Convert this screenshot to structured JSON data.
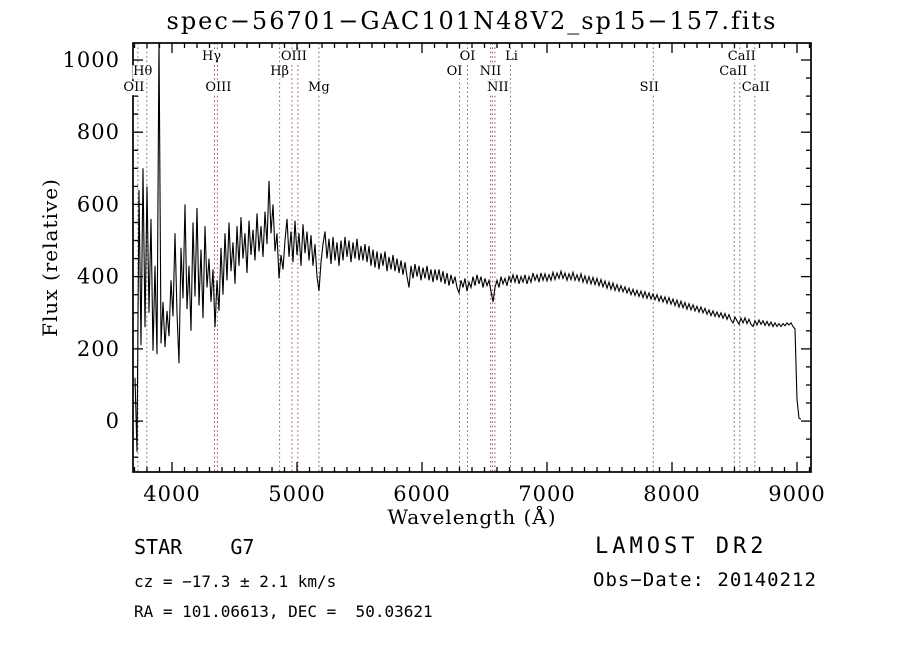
{
  "chart_data": {
    "type": "line",
    "title": "spec−56701−GAC101N48V2_sp15−157.fits",
    "xlabel": "Wavelength (Å)",
    "ylabel": "Flux (relative)",
    "xlim": [
      3688,
      9112
    ],
    "ylim": [
      -141,
      1047
    ],
    "xticks": [
      4000,
      5000,
      6000,
      7000,
      8000,
      9000
    ],
    "yticks": [
      0,
      200,
      400,
      600,
      800,
      1000
    ],
    "x_minor_step": 100,
    "y_minor_step": 50,
    "grid": false,
    "line_color": "#000000",
    "marker_color": "#9a5a5a",
    "spectral_lines": [
      {
        "wavelength": 3727,
        "label": "OII",
        "row": 3,
        "dx": -4
      },
      {
        "wavelength": 3798,
        "label": "Hθ",
        "row": 2,
        "dx": -4
      },
      {
        "wavelength": 4340,
        "label": "Hγ",
        "row": 1,
        "dx": -3
      },
      {
        "wavelength": 4363,
        "label": "OIII",
        "row": 3,
        "dx": 1
      },
      {
        "wavelength": 4861,
        "label": "Hβ",
        "row": 2,
        "dx": 0
      },
      {
        "wavelength": 4959,
        "label": "OIII",
        "row": 1,
        "dx": 2
      },
      {
        "wavelength": 5007,
        "label": "",
        "row": 0,
        "dx": 0
      },
      {
        "wavelength": 5175,
        "label": "Mg",
        "row": 3,
        "dx": 0
      },
      {
        "wavelength": 6300,
        "label": "OI",
        "row": 2,
        "dx": -5
      },
      {
        "wavelength": 6364,
        "label": "OI",
        "row": 1,
        "dx": 0
      },
      {
        "wavelength": 6548,
        "label": "NII",
        "row": 2,
        "dx": 0
      },
      {
        "wavelength": 6563,
        "label": "",
        "row": 0,
        "dx": 0
      },
      {
        "wavelength": 6583,
        "label": "NII",
        "row": 3,
        "dx": 3
      },
      {
        "wavelength": 6708,
        "label": "Li",
        "row": 1,
        "dx": 1
      },
      {
        "wavelength": 7850,
        "label": "SII",
        "row": 3,
        "dx": -4
      },
      {
        "wavelength": 8498,
        "label": "CaII",
        "row": 2,
        "dx": -1
      },
      {
        "wavelength": 8542,
        "label": "CaII",
        "row": 1,
        "dx": 2
      },
      {
        "wavelength": 8662,
        "label": "CaII",
        "row": 3,
        "dx": 1
      }
    ],
    "series": [
      {
        "name": "spectrum",
        "x_start": 3704,
        "x_step": 16,
        "flux": [
          120,
          -85,
          640,
          210,
          700,
          260,
          650,
          300,
          560,
          195,
          430,
          185,
          1060,
          215,
          330,
          205,
          305,
          235,
          390,
          290,
          520,
          300,
          160,
          480,
          340,
          600,
          310,
          430,
          250,
          550,
          345,
          590,
          320,
          475,
          285,
          540,
          370,
          450,
          330,
          420,
          260,
          390,
          305,
          480,
          350,
          520,
          390,
          550,
          415,
          495,
          380,
          540,
          430,
          565,
          450,
          520,
          410,
          555,
          460,
          530,
          445,
          575,
          470,
          540,
          455,
          580,
          490,
          665,
          520,
          600,
          470,
          520,
          395,
          460,
          420,
          500,
          560,
          455,
          525,
          440,
          555,
          460,
          520,
          430,
          545,
          465,
          525,
          445,
          515,
          430,
          490,
          400,
          360,
          440,
          490,
          525,
          450,
          505,
          435,
          510,
          445,
          495,
          430,
          500,
          445,
          510,
          455,
          500,
          440,
          495,
          450,
          505,
          445,
          485,
          445,
          490,
          440,
          485,
          430,
          475,
          425,
          470,
          420,
          465,
          430,
          470,
          415,
          455,
          420,
          460,
          415,
          450,
          410,
          445,
          405,
          440,
          400,
          370,
          430,
          395,
          435,
          400,
          430,
          390,
          425,
          395,
          430,
          390,
          420,
          385,
          420,
          390,
          420,
          385,
          415,
          380,
          410,
          375,
          405,
          380,
          400,
          370,
          355,
          390,
          370,
          395,
          360,
          385,
          370,
          400,
          375,
          405,
          380,
          400,
          370,
          395,
          375,
          390,
          360,
          330,
          370,
          390,
          370,
          400,
          380,
          395,
          375,
          400,
          385,
          405,
          385,
          405,
          380,
          400,
          385,
          405,
          380,
          400,
          385,
          410,
          390,
          405,
          385,
          410,
          390,
          408,
          388,
          405,
          390,
          412,
          392,
          410,
          395,
          415,
          395,
          410,
          390,
          408,
          392,
          412,
          390,
          405,
          388,
          408,
          385,
          402,
          382,
          400,
          380,
          398,
          378,
          395,
          375,
          392,
          372,
          388,
          368,
          385,
          365,
          382,
          362,
          378,
          360,
          375,
          358,
          372,
          355,
          368,
          350,
          365,
          348,
          362,
          345,
          360,
          342,
          358,
          340,
          355,
          338,
          352,
          336,
          350,
          332,
          346,
          330,
          344,
          326,
          342,
          324,
          338,
          320,
          335,
          316,
          332,
          314,
          328,
          310,
          325,
          308,
          322,
          305,
          318,
          302,
          316,
          300,
          312,
          296,
          308,
          292,
          305,
          290,
          302,
          288,
          300,
          285,
          298,
          282,
          295,
          280,
          272,
          288,
          278,
          268,
          285,
          272,
          286,
          270,
          282,
          268,
          262,
          278,
          266,
          280,
          268,
          278,
          265,
          276,
          264,
          274,
          262,
          272,
          262,
          270,
          262,
          270,
          264,
          272,
          266,
          272,
          262,
          255,
          60,
          8,
          5
        ]
      }
    ]
  },
  "annotations": {
    "class_line": "STAR    G7",
    "cz_line": "cz = −17.3 ± 2.1 km/s",
    "radec_line": "RA = 101.06613, DEC =  50.03621",
    "survey": "LAMOST DR2",
    "obsdate_line": "Obs−Date: 20140212"
  }
}
